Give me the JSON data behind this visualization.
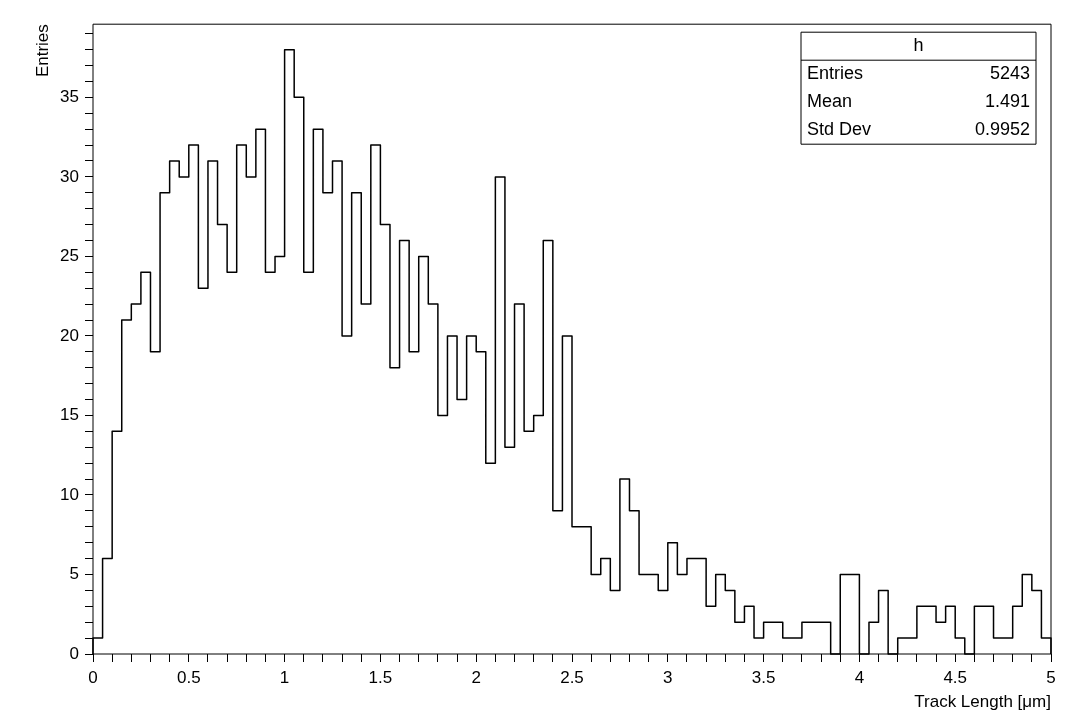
{
  "chart_data": {
    "type": "histogram",
    "xlabel": "Track Length [μm]",
    "ylabel": "Entries",
    "color": "#000000",
    "bins": [
      0,
      0.05,
      0.1,
      0.15,
      0.2,
      0.25,
      0.3,
      0.35,
      0.4,
      0.45,
      0.5,
      0.55,
      0.6,
      0.65,
      0.7,
      0.75,
      0.8,
      0.85,
      0.9,
      0.95,
      1,
      1.05,
      1.1,
      1.15,
      1.2,
      1.25,
      1.3,
      1.35,
      1.4,
      1.45,
      1.5,
      1.55,
      1.6,
      1.65,
      1.7,
      1.75,
      1.8,
      1.85,
      1.9,
      1.95,
      2,
      2.05,
      2.1,
      2.15,
      2.2,
      2.25,
      2.3,
      2.35,
      2.4,
      2.45,
      2.5,
      2.55,
      2.6,
      2.65,
      2.7,
      2.75,
      2.8,
      2.85,
      2.9,
      2.95,
      3,
      3.05,
      3.1,
      3.15,
      3.2,
      3.25,
      3.3,
      3.35,
      3.4,
      3.45,
      3.5,
      3.55,
      3.6,
      3.65,
      3.7,
      3.75,
      3.8,
      3.85,
      3.9,
      3.95,
      4,
      4.05,
      4.1,
      4.15,
      4.2,
      4.25,
      4.3,
      4.35,
      4.4,
      4.45,
      4.5,
      4.55,
      4.6,
      4.65,
      4.7,
      4.75,
      4.8,
      4.85,
      4.9,
      4.95,
      5
    ],
    "values": [
      1,
      6,
      14,
      21,
      22,
      24,
      19,
      29,
      31,
      30,
      32,
      23,
      31,
      27,
      24,
      32,
      30,
      33,
      24,
      25,
      38,
      35,
      24,
      33,
      29,
      31,
      20,
      29,
      22,
      32,
      27,
      18,
      26,
      19,
      25,
      22,
      15,
      20,
      16,
      20,
      19,
      12,
      30,
      13,
      22,
      14,
      15,
      26,
      9,
      20,
      8,
      8,
      5,
      6,
      4,
      11,
      9,
      5,
      5,
      4,
      7,
      5,
      6,
      6,
      3,
      5,
      4,
      2,
      3,
      1,
      2,
      2,
      1,
      1,
      2,
      2,
      2,
      0,
      5,
      5,
      0,
      2,
      4,
      0,
      1,
      1,
      3,
      3,
      2,
      3,
      1,
      0,
      3,
      3,
      1,
      1,
      3,
      5,
      4,
      1
    ],
    "xlim": [
      0,
      5
    ],
    "xticks": [
      0,
      {
        "value": 0.1,
        "label": null
      },
      {
        "value": 0.2,
        "label": null
      },
      {
        "value": 0.3,
        "label": null
      },
      {
        "value": 0.4,
        "label": null
      },
      0.5,
      {
        "value": 0.6,
        "label": null
      },
      {
        "value": 0.7,
        "label": null
      },
      {
        "value": 0.8,
        "label": null
      },
      {
        "value": 0.9,
        "label": null
      },
      1,
      {
        "value": 1.1,
        "label": null
      },
      {
        "value": 1.2,
        "label": null
      },
      {
        "value": 1.3,
        "label": null
      },
      {
        "value": 1.4,
        "label": null
      },
      1.5,
      {
        "value": 1.6,
        "label": null
      },
      {
        "value": 1.7,
        "label": null
      },
      {
        "value": 1.8,
        "label": null
      },
      {
        "value": 1.9,
        "label": null
      },
      2,
      {
        "value": 2.1,
        "label": null
      },
      {
        "value": 2.2,
        "label": null
      },
      {
        "value": 2.3,
        "label": null
      },
      {
        "value": 2.4,
        "label": null
      },
      2.5,
      {
        "value": 2.6,
        "label": null
      },
      {
        "value": 2.7,
        "label": null
      },
      {
        "value": 2.8,
        "label": null
      },
      {
        "value": 2.9,
        "label": null
      },
      3,
      {
        "value": 3.1,
        "label": null
      },
      {
        "value": 3.2,
        "label": null
      },
      {
        "value": 3.3,
        "label": null
      },
      {
        "value": 3.4,
        "label": null
      },
      3.5,
      {
        "value": 3.6,
        "label": null
      },
      {
        "value": 3.7,
        "label": null
      },
      {
        "value": 3.8,
        "label": null
      },
      {
        "value": 3.9,
        "label": null
      },
      4,
      {
        "value": 4.1,
        "label": null
      },
      {
        "value": 4.2,
        "label": null
      },
      {
        "value": 4.3,
        "label": null
      },
      {
        "value": 4.4,
        "label": null
      },
      4.5,
      {
        "value": 4.6,
        "label": null
      },
      {
        "value": 4.7,
        "label": null
      },
      {
        "value": 4.8,
        "label": null
      },
      {
        "value": 4.9,
        "label": null
      },
      5
    ],
    "ylim": [
      0,
      39.6
    ],
    "yticks": [
      0,
      {
        "value": 1,
        "label": null
      },
      {
        "value": 2,
        "label": null
      },
      {
        "value": 3,
        "label": null
      },
      {
        "value": 4,
        "label": null
      },
      5,
      {
        "value": 6,
        "label": null
      },
      {
        "value": 7,
        "label": null
      },
      {
        "value": 8,
        "label": null
      },
      {
        "value": 9,
        "label": null
      },
      10,
      {
        "value": 11,
        "label": null
      },
      {
        "value": 12,
        "label": null
      },
      {
        "value": 13,
        "label": null
      },
      {
        "value": 14,
        "label": null
      },
      15,
      {
        "value": 16,
        "label": null
      },
      {
        "value": 17,
        "label": null
      },
      {
        "value": 18,
        "label": null
      },
      {
        "value": 19,
        "label": null
      },
      20,
      {
        "value": 21,
        "label": null
      },
      {
        "value": 22,
        "label": null
      },
      {
        "value": 23,
        "label": null
      },
      {
        "value": 24,
        "label": null
      },
      25,
      {
        "value": 26,
        "label": null
      },
      {
        "value": 27,
        "label": null
      },
      {
        "value": 28,
        "label": null
      },
      {
        "value": 29,
        "label": null
      },
      30,
      {
        "value": 31,
        "label": null
      },
      {
        "value": 32,
        "label": null
      },
      {
        "value": 33,
        "label": null
      },
      {
        "value": 34,
        "label": null
      },
      35,
      {
        "value": 36,
        "label": null
      },
      {
        "value": 37,
        "label": null
      },
      {
        "value": 38,
        "label": null
      },
      {
        "value": 39,
        "label": null
      }
    ],
    "annotations": [
      "h",
      "Entries",
      "5243",
      "Mean",
      "1.491",
      "Std Dev",
      "0.9952"
    ],
    "legend": false
  }
}
